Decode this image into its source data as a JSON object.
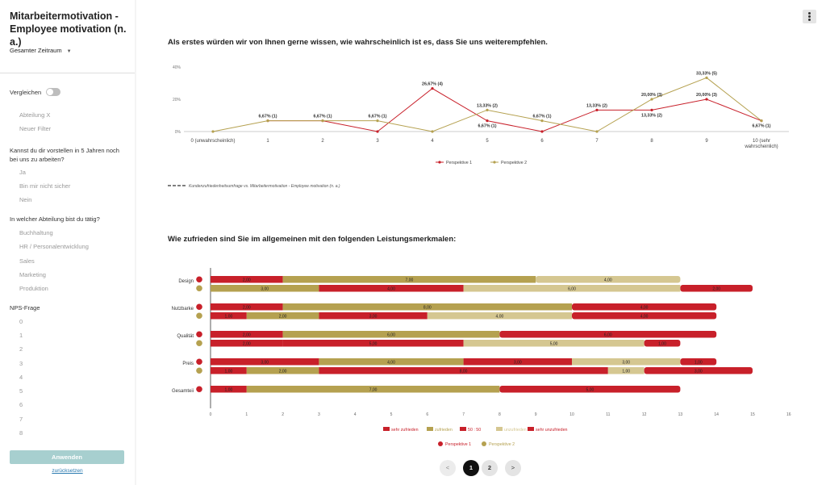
{
  "sidebar": {
    "title": "Mitarbeitermotivation - Employee motivation (n. a.)",
    "period": "Gesamter Zeitraum",
    "compare_label": "Vergleichen",
    "compare_items": [
      "Abteilung X",
      "Neuer Filter"
    ],
    "question1": "Kannst du dir vorstellen in 5 Jahren noch bei uns zu arbeiten?",
    "question1_options": [
      "Ja",
      "Bin mir nicht sicher",
      "Nein"
    ],
    "question2": "In welcher Abteilung bist du tätig?",
    "question2_options": [
      "Buchhaltung",
      "HR / Personalentwicklung",
      "Sales",
      "Marketing",
      "Produktion"
    ],
    "question3": "NPS-Frage",
    "question3_options": [
      "0",
      "1",
      "2",
      "3",
      "4",
      "5",
      "6",
      "7",
      "8"
    ],
    "apply_label": "Anwenden",
    "reset_label": "zurücksetzen"
  },
  "main": {
    "q1_title": "Als erstes würden wir von Ihnen gerne wissen, wie wahrscheinlich ist es, dass Sie uns weiterempfehlen.",
    "q2_title": "Wie zufrieden sind Sie im allgemeinen mit den folgenden Leistungsmerkmalen:",
    "comparison_note": "Kundenzufriedenheitsumfrage vs. Mitarbeitermotivation - Employee motivation (n. a.)"
  },
  "pagination": {
    "prev": "<",
    "pages": [
      "1",
      "2"
    ],
    "next": ">",
    "current": "1"
  },
  "colors": {
    "p1": "#c8202a",
    "p2": "#b5a150",
    "muted": "#d5c791",
    "teal": "#a7cfcf"
  },
  "chart_data": [
    {
      "type": "line",
      "x": [
        "0 (unwahrscheinlich)",
        "1",
        "2",
        "3",
        "4",
        "5",
        "6",
        "7",
        "8",
        "9",
        "10 (sehr wahrscheinlich)"
      ],
      "yticks": [
        "40%",
        "20%",
        "0%"
      ],
      "ylim": [
        0,
        40
      ],
      "series": [
        {
          "name": "Perspektive 1",
          "color": "#c8202a",
          "values": [
            null,
            6.67,
            6.67,
            0,
            26.67,
            6.67,
            0,
            13.33,
            13.33,
            20.0,
            6.67
          ],
          "labels": [
            "",
            "",
            "",
            "",
            "26,67% (4)",
            "6,67% (1)",
            "",
            "13,33% (2)",
            "13,33% (2)",
            "20,00% (3)",
            "6,67% (1)"
          ]
        },
        {
          "name": "Perspektive 2",
          "color": "#b5a150",
          "values": [
            0,
            6.67,
            6.67,
            6.67,
            0,
            13.33,
            6.67,
            0,
            20.0,
            33.33,
            6.67
          ],
          "labels": [
            "",
            "6,67% (1)",
            "6,67% (1)",
            "6,67% (1)",
            "",
            "13,33% (2)",
            "6,67% (1)",
            "",
            "20,00% (3)",
            "33,33% (5)",
            ""
          ]
        }
      ],
      "legend": "bottom-center"
    },
    {
      "type": "bar",
      "orientation": "horizontal-stacked",
      "categories": [
        "Design",
        "Nutzbarke",
        "Qualität",
        "Preis",
        "Gesamteii"
      ],
      "xticks": [
        "0",
        "1",
        "2",
        "3",
        "4",
        "5",
        "6",
        "7",
        "8",
        "9",
        "10",
        "11",
        "12",
        "13",
        "14",
        "15",
        "16"
      ],
      "xlim": [
        0,
        16
      ],
      "segments": [
        "sehr zufrieden",
        "zufrieden",
        "50 : 50",
        "unzufrieden",
        "sehr unzufrieden"
      ],
      "segment_colors": [
        "#c8202a",
        "#b5a150",
        "#c8202a",
        "#d5c791",
        "#c8202a"
      ],
      "perspectives": [
        "Perspektive 1",
        "Perspektive 2"
      ],
      "rows": [
        {
          "category": "Design",
          "p1": [
            2,
            7,
            0,
            4,
            0
          ],
          "p1_labels": [
            "2,00",
            "7,00",
            "",
            "4,00",
            ""
          ],
          "p2": [
            0,
            3,
            4,
            6,
            2
          ],
          "p2_labels": [
            "",
            "3,00",
            "4,00",
            "6,00",
            "2,00"
          ]
        },
        {
          "category": "Nutzbarke",
          "p1": [
            2,
            8,
            0,
            0,
            4
          ],
          "p1_labels": [
            "2,00",
            "8,00",
            "",
            "",
            "4,00"
          ],
          "p2": [
            1,
            2,
            3,
            4,
            4
          ],
          "p2_labels": [
            "1,00",
            "2,00",
            "3,00",
            "4,00",
            "4,00"
          ]
        },
        {
          "category": "Qualität",
          "p1": [
            2,
            6,
            0,
            0,
            6
          ],
          "p1_labels": [
            "2,00",
            "6,00",
            "",
            "",
            "6,00"
          ],
          "p2": [
            2,
            0,
            5,
            5,
            1
          ],
          "p2_labels": [
            "2,00",
            "",
            "5,00",
            "5,00",
            "1,00"
          ]
        },
        {
          "category": "Preis",
          "p1": [
            3,
            4,
            3,
            3,
            1
          ],
          "p1_labels": [
            "3,00",
            "4,00",
            "3,00",
            "3,00",
            "1,00"
          ],
          "p2": [
            1,
            2,
            8,
            1,
            3
          ],
          "p2_labels": [
            "1,00",
            "2,00",
            "8,00",
            "1,00",
            "3,00"
          ]
        },
        {
          "category": "Gesamteii",
          "p1": [
            1,
            7,
            0,
            0,
            5
          ],
          "p1_labels": [
            "1,00",
            "7,00",
            "",
            "",
            "5,00"
          ],
          "p2": null,
          "p2_labels": null
        }
      ],
      "legend": "bottom-center"
    }
  ]
}
